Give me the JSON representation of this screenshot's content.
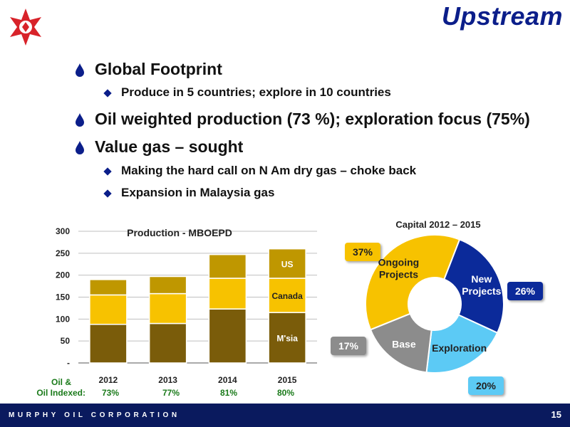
{
  "header": {
    "title": "Upstream"
  },
  "bullets": [
    {
      "level": 1,
      "text": "Global Footprint"
    },
    {
      "level": 2,
      "text": "Produce in 5 countries; explore in 10 countries"
    },
    {
      "level": 1,
      "text": "Oil weighted production (73 %); exploration focus (75%)"
    },
    {
      "level": 1,
      "text": "Value gas – sought"
    },
    {
      "level": 2,
      "text": "Making the hard call on N Am dry gas – choke back"
    },
    {
      "level": 2,
      "text": "Expansion in Malaysia gas"
    }
  ],
  "oil_row": {
    "label_line1": "Oil &",
    "label_line2": "Oil Indexed:",
    "values": [
      "73%",
      "77%",
      "81%",
      "80%"
    ]
  },
  "footer": {
    "company": "MURPHY OIL CORPORATION",
    "page": "15"
  },
  "colors": {
    "brand_navy": "#0a1a5e",
    "title_blue": "#0b1e8a",
    "logo_red": "#d8232a"
  },
  "chart_data": [
    {
      "type": "bar",
      "stacked": true,
      "title": "Production - MBOEPD",
      "categories": [
        "2012",
        "2013",
        "2014",
        "2015"
      ],
      "series": [
        {
          "name": "M'sia",
          "values": [
            88,
            90,
            123,
            115
          ],
          "color": "#7a5c0a"
        },
        {
          "name": "Canada",
          "values": [
            67,
            68,
            70,
            78
          ],
          "color": "#f7c200"
        },
        {
          "name": "US",
          "values": [
            35,
            39,
            54,
            67
          ],
          "color": "#bf9700"
        }
      ],
      "ylim": [
        0,
        300
      ],
      "yticks": [
        "-",
        "50",
        "100",
        "150",
        "200",
        "250",
        "300"
      ],
      "grid": true
    },
    {
      "type": "pie",
      "donut": true,
      "title": "Capital 2012 – 2015",
      "slices": [
        {
          "label_line1": "Ongoing",
          "label_line2": "Projects",
          "value": 37,
          "pct": "37%",
          "color": "#f7c200"
        },
        {
          "label_line1": "New",
          "label_line2": "Projects",
          "value": 26,
          "pct": "26%",
          "color": "#0b2a9a"
        },
        {
          "label_line1": "Exploration",
          "label_line2": "",
          "value": 20,
          "pct": "20%",
          "color": "#5ccaf5"
        },
        {
          "label_line1": "Base",
          "label_line2": "",
          "value": 17,
          "pct": "17%",
          "color": "#8c8c8c"
        }
      ]
    }
  ]
}
